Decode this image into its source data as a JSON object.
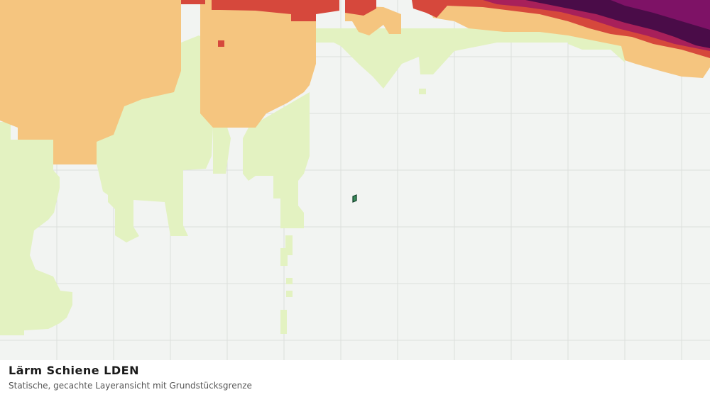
{
  "map": {
    "title": "Lärm Schiene LDEN",
    "subtitle": "Statische, gecachte Layeransicht mit Grundstücksgrenze"
  }
}
